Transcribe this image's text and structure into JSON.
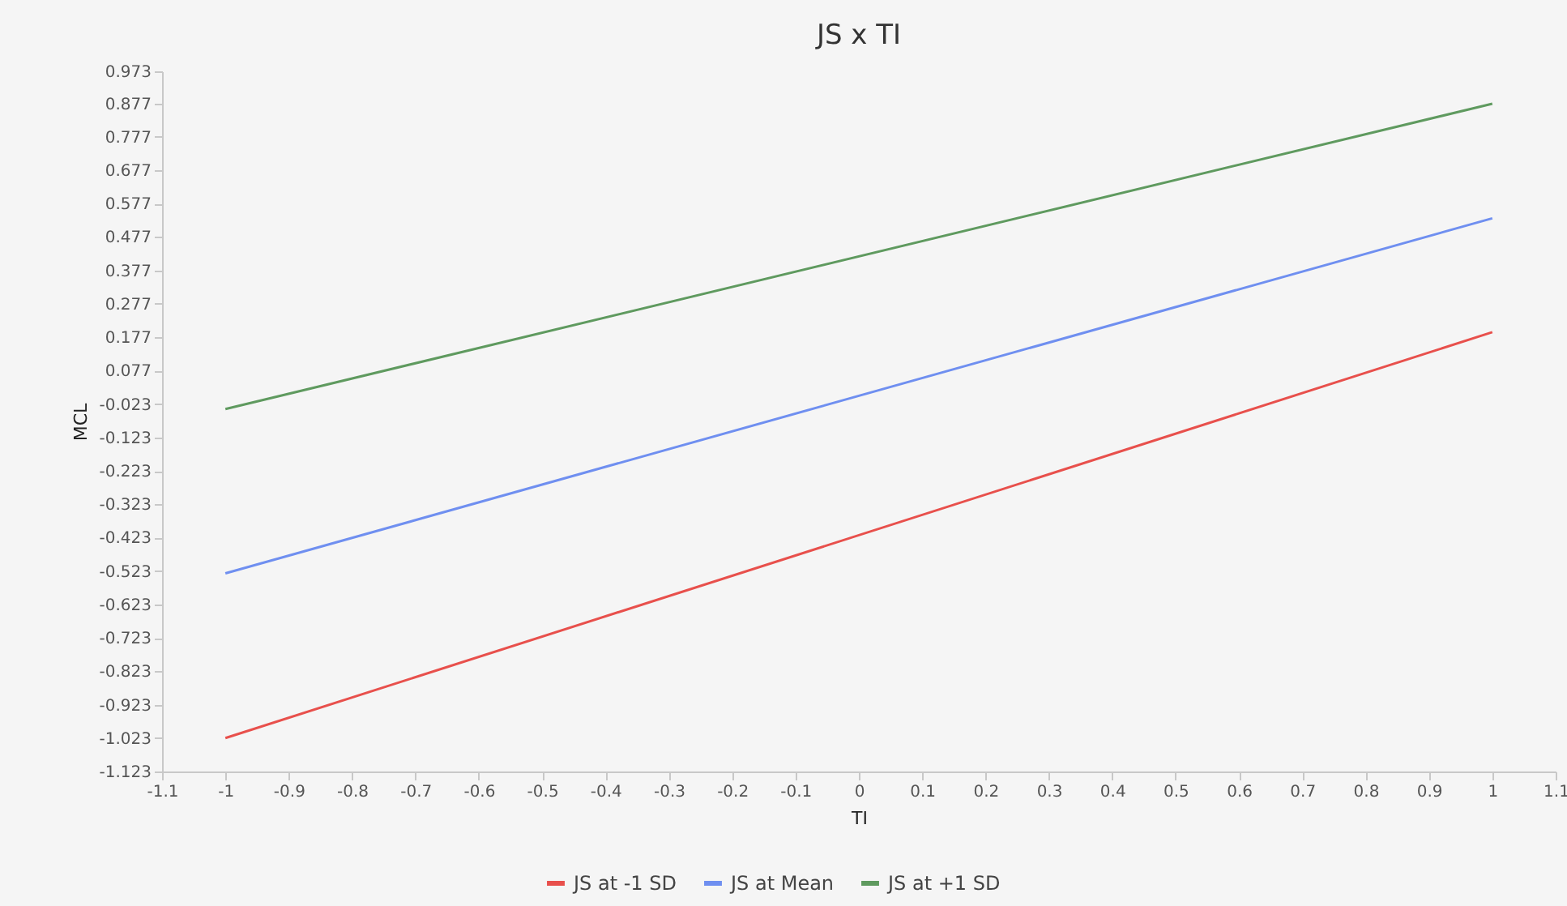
{
  "chart_data": {
    "type": "line",
    "title": "JS x TI",
    "xlabel": "TI",
    "ylabel": "MCL",
    "x": [
      -1,
      1
    ],
    "series": [
      {
        "name": "JS at -1 SD",
        "color": "#e8504c",
        "values": [
          -1.023,
          0.192
        ]
      },
      {
        "name": "JS at Mean",
        "color": "#6f8ff0",
        "values": [
          -0.53,
          0.533
        ]
      },
      {
        "name": "JS at +1 SD",
        "color": "#5f9a5f",
        "values": [
          -0.038,
          0.876
        ]
      }
    ],
    "xlim": [
      -1.1,
      1.1
    ],
    "xticks": [
      -1.1,
      -1,
      -0.9,
      -0.8,
      -0.7,
      -0.6,
      -0.5,
      -0.4,
      -0.3,
      -0.2,
      -0.1,
      0,
      0.1,
      0.2,
      0.3,
      0.4,
      0.5,
      0.6,
      0.7,
      0.8,
      0.9,
      1,
      1.1
    ],
    "ylim": [
      -1.123,
      0.973
    ],
    "yticks": [
      -1.123,
      -1.023,
      -0.923,
      -0.823,
      -0.723,
      -0.623,
      -0.523,
      -0.423,
      -0.323,
      -0.223,
      -0.123,
      -0.023,
      0.077,
      0.177,
      0.277,
      0.377,
      0.477,
      0.577,
      0.677,
      0.777,
      0.877,
      0.973
    ],
    "grid": false,
    "legend": "bottom",
    "marker": "none",
    "line_style": "solid"
  }
}
